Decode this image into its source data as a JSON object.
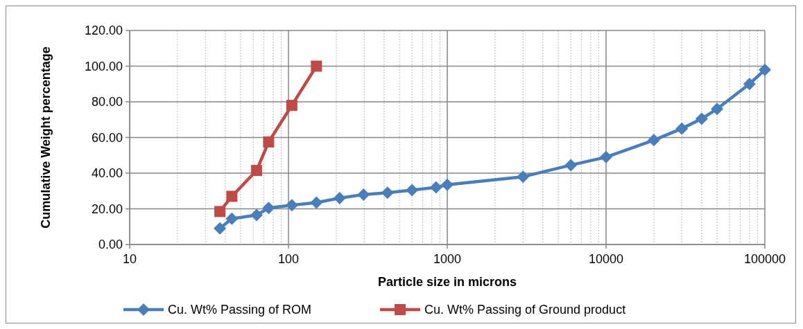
{
  "chart_data": {
    "type": "line",
    "xlabel": "Particle size in microns",
    "ylabel": "Cumulative Weight percentage",
    "log": "x",
    "grid": true,
    "legend": "bottom",
    "line_style": "solid",
    "xlim": [
      10,
      100000
    ],
    "xticks": [
      {
        "value": 10,
        "label": "10"
      },
      {
        "value": 20,
        "label": null
      },
      {
        "value": 30,
        "label": null
      },
      {
        "value": 40,
        "label": null
      },
      {
        "value": 50,
        "label": null
      },
      {
        "value": 60,
        "label": null
      },
      {
        "value": 70,
        "label": null
      },
      {
        "value": 80,
        "label": null
      },
      {
        "value": 90,
        "label": null
      },
      {
        "value": 100,
        "label": "100"
      },
      {
        "value": 200,
        "label": null
      },
      {
        "value": 300,
        "label": null
      },
      {
        "value": 400,
        "label": null
      },
      {
        "value": 500,
        "label": null
      },
      {
        "value": 600,
        "label": null
      },
      {
        "value": 700,
        "label": null
      },
      {
        "value": 800,
        "label": null
      },
      {
        "value": 900,
        "label": null
      },
      {
        "value": 1000,
        "label": "1000"
      },
      {
        "value": 2000,
        "label": null
      },
      {
        "value": 3000,
        "label": null
      },
      {
        "value": 4000,
        "label": null
      },
      {
        "value": 5000,
        "label": null
      },
      {
        "value": 6000,
        "label": null
      },
      {
        "value": 7000,
        "label": null
      },
      {
        "value": 8000,
        "label": null
      },
      {
        "value": 9000,
        "label": null
      },
      {
        "value": 10000,
        "label": "10000"
      },
      {
        "value": 20000,
        "label": null
      },
      {
        "value": 30000,
        "label": null
      },
      {
        "value": 40000,
        "label": null
      },
      {
        "value": 50000,
        "label": null
      },
      {
        "value": 60000,
        "label": null
      },
      {
        "value": 70000,
        "label": null
      },
      {
        "value": 80000,
        "label": null
      },
      {
        "value": 90000,
        "label": null
      },
      {
        "value": 100000,
        "label": "100000"
      }
    ],
    "ylim": [
      0,
      120
    ],
    "yticks": [
      {
        "value": 0,
        "label": "0.00"
      },
      {
        "value": 20,
        "label": "20.00"
      },
      {
        "value": 40,
        "label": "40.00"
      },
      {
        "value": 60,
        "label": "60.00"
      },
      {
        "value": 80,
        "label": "80.00"
      },
      {
        "value": 100,
        "label": "100.00"
      },
      {
        "value": 120,
        "label": "120.00"
      }
    ],
    "series": [
      {
        "name": "Cu. Wt% Passing of ROM",
        "color": "#4a7ebb",
        "marker": "diamond",
        "x": [
          37,
          44,
          63,
          75,
          105,
          150,
          210,
          297,
          420,
          600,
          850,
          1000,
          3000,
          6000,
          10000,
          20000,
          30000,
          40000,
          50000,
          80000,
          100000
        ],
        "values": [
          9,
          14.5,
          16.5,
          20.5,
          22,
          23.5,
          26,
          28,
          29,
          30.5,
          32,
          33.5,
          38,
          44.5,
          49,
          58.5,
          65,
          70.5,
          76,
          90,
          98
        ]
      },
      {
        "name": "Cu. Wt% Passing of Ground product",
        "color": "#be4b48",
        "marker": "square",
        "x": [
          37,
          44,
          63,
          75,
          105,
          150
        ],
        "values": [
          18.5,
          27,
          41.5,
          57.5,
          78,
          100
        ]
      }
    ]
  }
}
